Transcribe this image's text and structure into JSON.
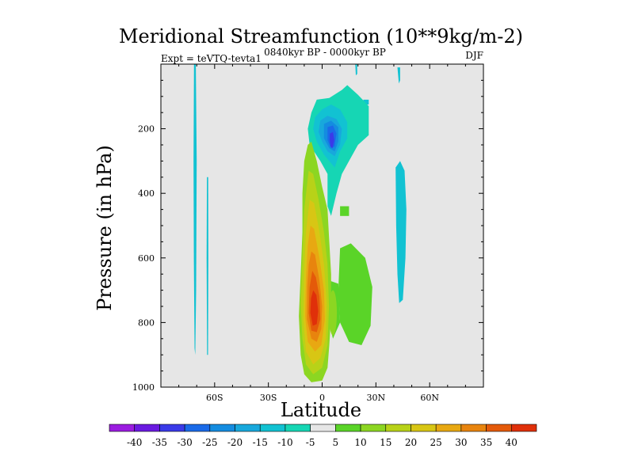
{
  "chart_data": {
    "type": "contour",
    "title": "Meridional Streamfunction (10**9kg/m-2)",
    "subtitle_left": "Expt = teVTQ-tevta1",
    "subtitle_center": "0840kyr BP - 0000kyr BP",
    "subtitle_right": "DJF",
    "xlabel": "Latitude",
    "ylabel": "Pressure (in hPa)",
    "xlim": [
      -90,
      90
    ],
    "ylim": [
      1000,
      0
    ],
    "x_ticks": [
      {
        "value": -60,
        "label": "60S"
      },
      {
        "value": -30,
        "label": "30S"
      },
      {
        "value": 0,
        "label": "0"
      },
      {
        "value": 30,
        "label": "30N"
      },
      {
        "value": 60,
        "label": "60N"
      }
    ],
    "y_ticks": [
      {
        "value": 200,
        "label": "200"
      },
      {
        "value": 400,
        "label": "400"
      },
      {
        "value": 600,
        "label": "600"
      },
      {
        "value": 800,
        "label": "800"
      },
      {
        "value": 1000,
        "label": "1000"
      }
    ],
    "background_color": "#e6e6e6",
    "colorbar": {
      "levels": [
        -40,
        -35,
        -30,
        -25,
        -20,
        -15,
        -10,
        -5,
        5,
        10,
        15,
        20,
        25,
        30,
        35,
        40
      ],
      "labels": [
        "-40",
        "-35",
        "-30",
        "-25",
        "-20",
        "-15",
        "-10",
        "-5",
        "5",
        "10",
        "15",
        "20",
        "25",
        "30",
        "35",
        "40"
      ],
      "colors": [
        "#9b1ce0",
        "#6a1ae0",
        "#3a3ae8",
        "#1a6ae8",
        "#148ce0",
        "#18a8dc",
        "#12c2d2",
        "#16d6b4",
        "#e6e6e6",
        "#5ad428",
        "#8cd622",
        "#b8d218",
        "#d8c614",
        "#e8a812",
        "#e8840e",
        "#e45a0a",
        "#e0300a"
      ]
    },
    "features": [
      {
        "name": "upper-tropical-negative-cell",
        "sign": "negative",
        "lat_range": [
          -5,
          20
        ],
        "p_range": [
          70,
          320
        ],
        "core_value": -30,
        "core_lat": 5,
        "core_p": 240
      },
      {
        "name": "tropical-positive-cell",
        "sign": "positive",
        "lat_range": [
          -12,
          5
        ],
        "p_range": [
          240,
          980
        ],
        "core_value": 35,
        "core_lat": -4,
        "core_p": 770
      },
      {
        "name": "southern-subtropical-positive",
        "sign": "positive",
        "lat_range": [
          5,
          28
        ],
        "p_range": [
          600,
          880
        ],
        "core_value": 10,
        "core_lat": 15,
        "core_p": 720
      },
      {
        "name": "southern-high-latitude-bands",
        "sign": "negative",
        "lat_range": [
          -72,
          -63
        ],
        "p_range": [
          0,
          900
        ],
        "core_value": -10,
        "core_lat": -70,
        "core_p": 450
      },
      {
        "name": "northern-midlatitude-negative",
        "sign": "negative",
        "lat_range": [
          41,
          47
        ],
        "p_range": [
          300,
          740
        ],
        "core_value": -10,
        "core_lat": 44,
        "core_p": 500
      }
    ]
  }
}
